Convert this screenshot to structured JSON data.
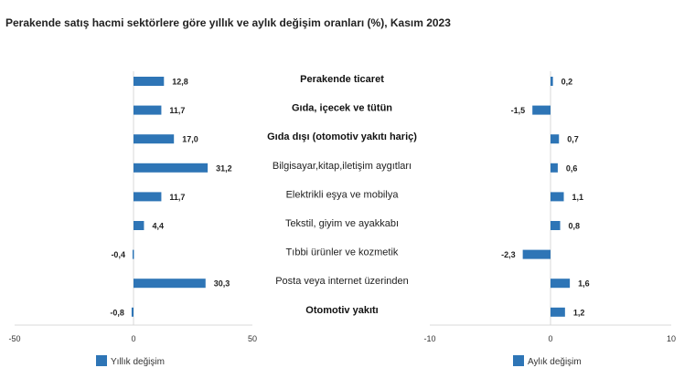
{
  "chart_data": {
    "type": "bar",
    "orientation": "horizontal",
    "title": "Perakende satış hacmi sektörlere göre yıllık ve aylık değişim oranları (%), Kasım 2023",
    "categories": [
      {
        "label": "Perakende ticaret",
        "bold": true
      },
      {
        "label": "Gıda, içecek ve tütün",
        "bold": true
      },
      {
        "label": "Gıda dışı (otomotiv yakıtı hariç)",
        "bold": true
      },
      {
        "label": "Bilgisayar,kitap,iletişim aygıtları",
        "bold": false
      },
      {
        "label": "Elektrikli eşya ve mobilya",
        "bold": false
      },
      {
        "label": "Tekstil, giyim ve ayakkabı",
        "bold": false
      },
      {
        "label": "Tıbbi ürünler ve kozmetik",
        "bold": false
      },
      {
        "label": "Posta veya internet üzerinden",
        "bold": false
      },
      {
        "label": "Otomotiv yakıtı",
        "bold": true
      }
    ],
    "series": [
      {
        "name": "Yıllık değişim",
        "values": [
          12.8,
          11.7,
          17.0,
          31.2,
          11.7,
          4.4,
          -0.4,
          30.3,
          -0.8
        ],
        "labels": [
          "12,8",
          "11,7",
          "17,0",
          "31,2",
          "11,7",
          "4,4",
          "-0,4",
          "30,3",
          "-0,8"
        ],
        "xlim": [
          -50,
          50
        ],
        "ticks": [
          -50,
          0,
          50
        ],
        "tick_labels": [
          "-50",
          "0",
          "50"
        ]
      },
      {
        "name": "Aylık değişim",
        "values": [
          0.2,
          -1.5,
          0.7,
          0.6,
          1.1,
          0.8,
          -2.3,
          1.6,
          1.2
        ],
        "labels": [
          "0,2",
          "-1,5",
          "0,7",
          "0,6",
          "1,1",
          "0,8",
          "-2,3",
          "1,6",
          "1,2"
        ],
        "xlim": [
          -10,
          10
        ],
        "ticks": [
          -10,
          0,
          10
        ],
        "tick_labels": [
          "-10",
          "0",
          "10"
        ]
      }
    ],
    "color": "#2E75B6",
    "grid": false,
    "legend_position": "bottom"
  }
}
